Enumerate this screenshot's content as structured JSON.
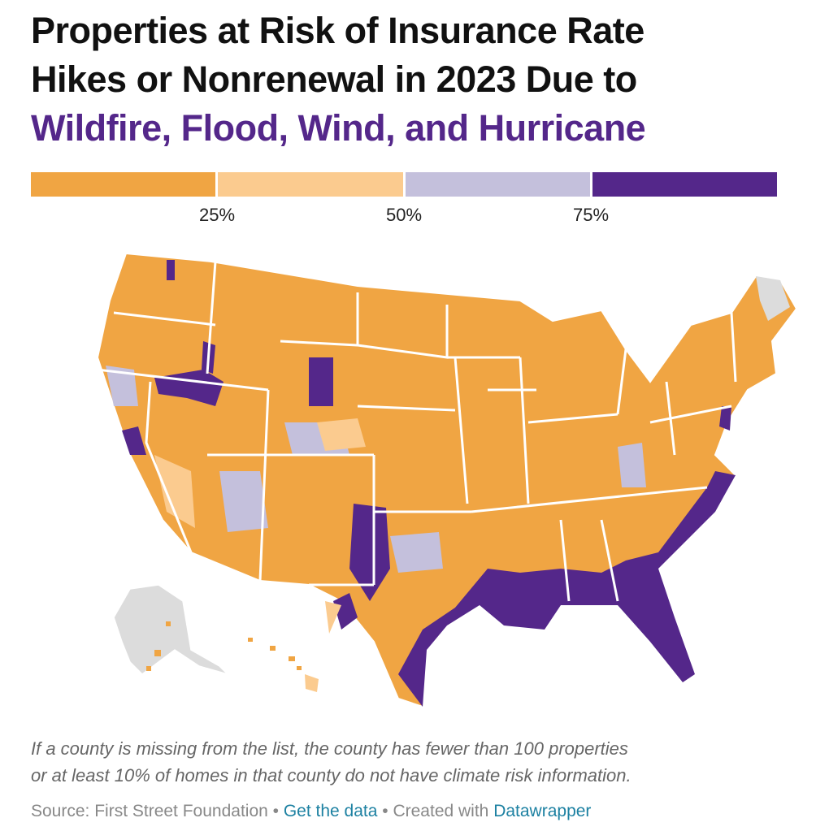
{
  "title": {
    "line1": "Properties at Risk of Insurance Rate",
    "line2": "Hikes or Nonrenewal in 2023 Due to",
    "line3": "Wildfire, Flood, Wind, and Hurricane"
  },
  "legend": {
    "colors": [
      "#f0a543",
      "#fbcb8f",
      "#c4c0dc",
      "#54278a"
    ],
    "labels": [
      "25%",
      "50%",
      "75%"
    ]
  },
  "map": {
    "missing_color": "#dcdcdc",
    "border_color": "#ffffff"
  },
  "note": {
    "line1": "If a county is missing from the list, the county has fewer than 100 properties",
    "line2": "or at least 10% of homes in that county do not have climate risk information."
  },
  "footer": {
    "source": "Source: First Street Foundation",
    "sep": " • ",
    "get_data": "Get the data",
    "created": "Created with",
    "tool": "Datawrapper"
  }
}
